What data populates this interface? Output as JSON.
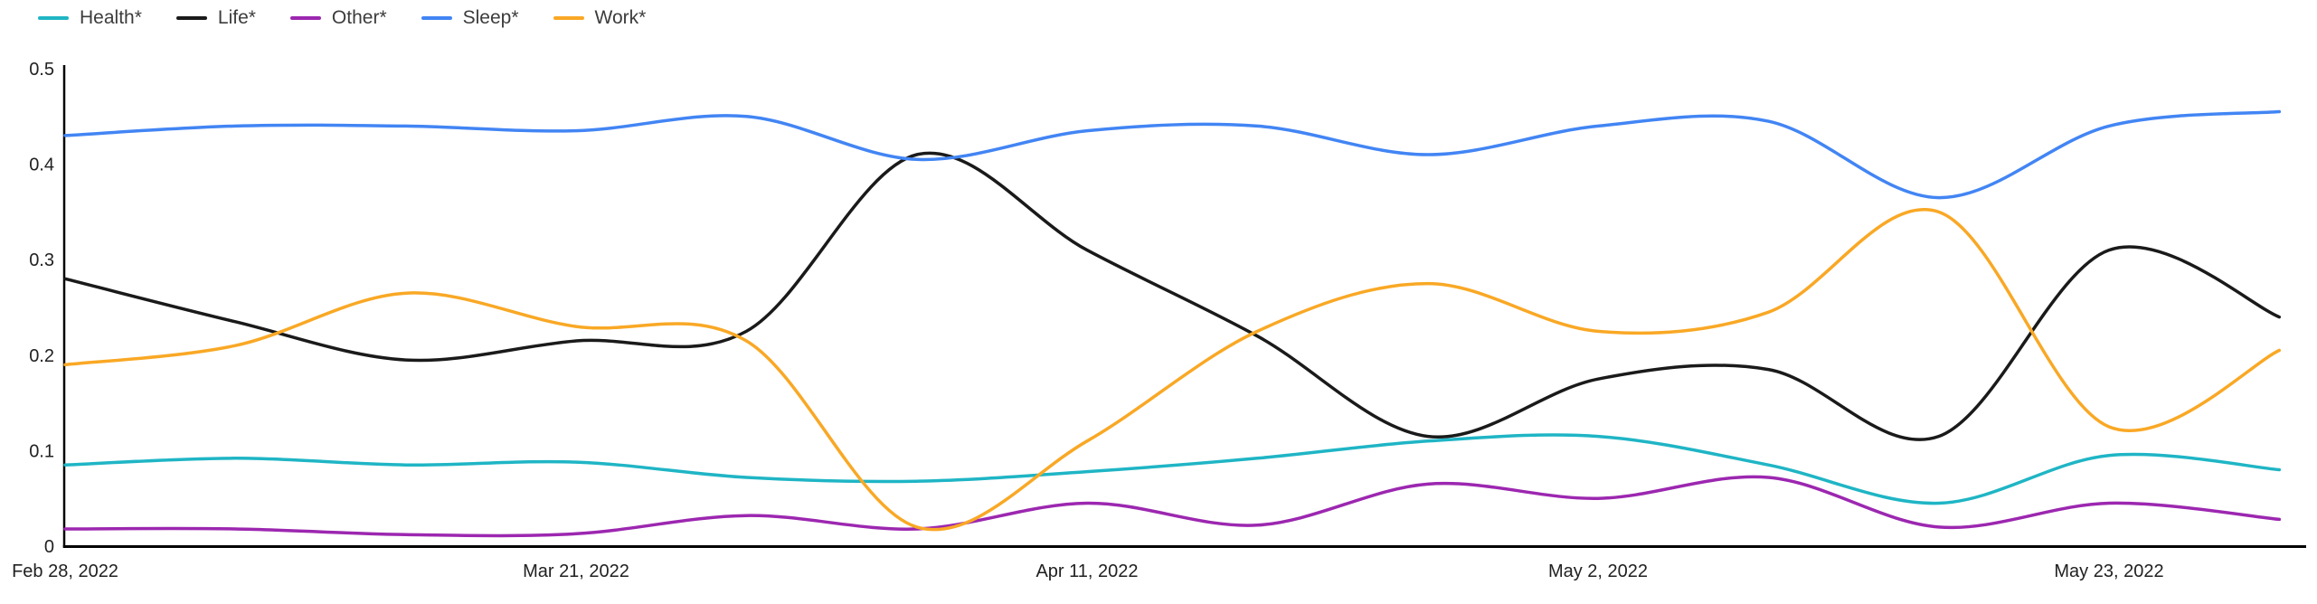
{
  "chart_data": {
    "type": "line",
    "title": "",
    "xlabel": "",
    "ylabel": "",
    "ylim": [
      0,
      0.5
    ],
    "grid": false,
    "smoothing": "spline",
    "legend_position": "top-left",
    "x": [
      "Feb 28, 2022",
      "Mar 7, 2022",
      "Mar 14, 2022",
      "Mar 21, 2022",
      "Mar 28, 2022",
      "Apr 4, 2022",
      "Apr 11, 2022",
      "Apr 18, 2022",
      "Apr 25, 2022",
      "May 2, 2022",
      "May 9, 2022",
      "May 16, 2022",
      "May 23, 2022",
      "May 30, 2022"
    ],
    "xticks": [
      "Feb 28, 2022",
      "Mar 21, 2022",
      "Apr 11, 2022",
      "May 2, 2022",
      "May 23, 2022"
    ],
    "xtick_indices": [
      0,
      3,
      6,
      9,
      12
    ],
    "yticks": [
      "0",
      "0.1",
      "0.2",
      "0.3",
      "0.4",
      "0.5"
    ],
    "ytick_values": [
      0,
      0.1,
      0.2,
      0.3,
      0.4,
      0.5
    ],
    "series": [
      {
        "name": "Health*",
        "color": "#1FB5C5",
        "values": [
          0.085,
          0.092,
          0.085,
          0.088,
          0.072,
          0.068,
          0.078,
          0.092,
          0.11,
          0.115,
          0.085,
          0.045,
          0.095,
          0.08
        ]
      },
      {
        "name": "Life*",
        "color": "#1A1A1A",
        "values": [
          0.28,
          0.235,
          0.195,
          0.215,
          0.225,
          0.41,
          0.31,
          0.22,
          0.115,
          0.175,
          0.185,
          0.115,
          0.31,
          0.24
        ]
      },
      {
        "name": "Other*",
        "color": "#9C27B0",
        "values": [
          0.018,
          0.018,
          0.012,
          0.013,
          0.032,
          0.018,
          0.045,
          0.022,
          0.065,
          0.05,
          0.072,
          0.02,
          0.045,
          0.028
        ]
      },
      {
        "name": "Sleep*",
        "color": "#4285F4",
        "values": [
          0.43,
          0.44,
          0.44,
          0.435,
          0.45,
          0.405,
          0.435,
          0.44,
          0.41,
          0.44,
          0.445,
          0.365,
          0.44,
          0.455
        ]
      },
      {
        "name": "Work*",
        "color": "#F9A825",
        "values": [
          0.19,
          0.21,
          0.265,
          0.23,
          0.215,
          0.02,
          0.11,
          0.225,
          0.275,
          0.225,
          0.245,
          0.35,
          0.125,
          0.205
        ]
      }
    ],
    "axis_color": "#000000",
    "label_color": "#212121"
  }
}
